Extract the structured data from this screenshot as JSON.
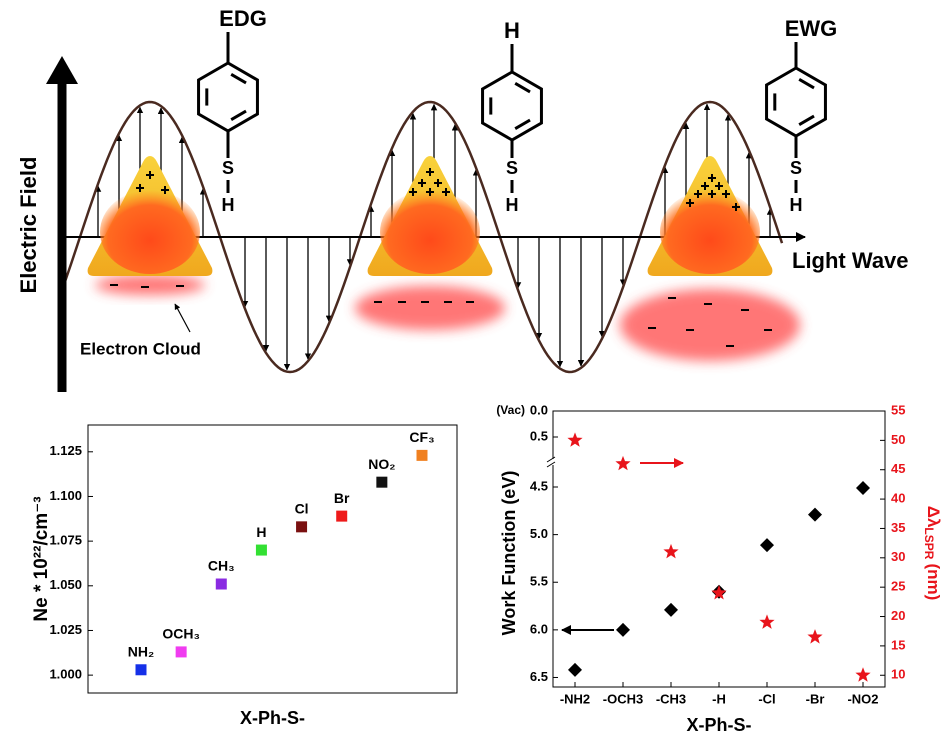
{
  "diagram": {
    "y_axis_label": "Electric Field",
    "x_axis_label": "Light Wave",
    "annotation": "Electron Cloud",
    "molecules": [
      {
        "substituent": "EDG",
        "linker": "S",
        "end": "H"
      },
      {
        "substituent": "H",
        "linker": "S",
        "end": "H"
      },
      {
        "substituent": "EWG",
        "linker": "S",
        "end": "H"
      }
    ]
  },
  "chart_data": [
    {
      "type": "scatter",
      "y_label": "Ne * 10²²/cm⁻³",
      "x_label": "X-Ph-S-",
      "categories": [
        "NH₂",
        "OCH₃",
        "CH₃",
        "H",
        "Cl",
        "Br",
        "NO₂",
        "CF₃"
      ],
      "values": [
        1.003,
        1.013,
        1.051,
        1.07,
        1.083,
        1.089,
        1.108,
        1.123
      ],
      "colors": [
        "#1530e8",
        "#f03cf0",
        "#8a2be2",
        "#33e033",
        "#7a1010",
        "#ee1a1a",
        "#111111",
        "#f08020"
      ],
      "ylim": [
        0.99,
        1.14
      ],
      "yticks": [
        {
          "value": 1,
          "label": "1.000"
        },
        1.025,
        {
          "value": 1.05,
          "label": "1.050"
        },
        1.075,
        {
          "value": 1.1,
          "label": "1.100"
        },
        1.125
      ]
    },
    {
      "type": "scatter",
      "x_label": "X-Ph-S-",
      "y_label": "Work Function (eV)",
      "y_top_label": "(Vac)",
      "y2_label": "Δλ",
      "y2_label_sub": "LSPR",
      "y2_label_unit": "(nm)",
      "y2_color": "#e8141b",
      "categories": [
        "-NH2",
        "-OCH3",
        "-CH3",
        "-H",
        "-Cl",
        "-Br",
        "-NO2"
      ],
      "series": [
        {
          "color": "#000000",
          "marker": "diamond",
          "values": [
            6.42,
            6.0,
            5.79,
            5.6,
            5.11,
            4.79,
            4.51
          ]
        },
        {
          "color": "#e8141b",
          "marker": "star",
          "axis": "y2",
          "values": [
            50,
            46,
            31,
            24,
            19,
            16.5,
            10
          ]
        }
      ],
      "ylim": [
        0,
        6.6
      ],
      "y_inverted": true,
      "y_break": [
        0.5,
        4.5
      ],
      "yticks": [
        {
          "value": 0,
          "label": "0.0"
        },
        0.5,
        4.5,
        {
          "value": 5,
          "label": "5.0"
        },
        5.5,
        {
          "value": 6,
          "label": "6.0"
        },
        6.5
      ],
      "y2lim": [
        8,
        55
      ],
      "y2ticks": [
        10,
        15,
        20,
        25,
        30,
        35,
        40,
        45,
        50,
        55
      ]
    }
  ]
}
